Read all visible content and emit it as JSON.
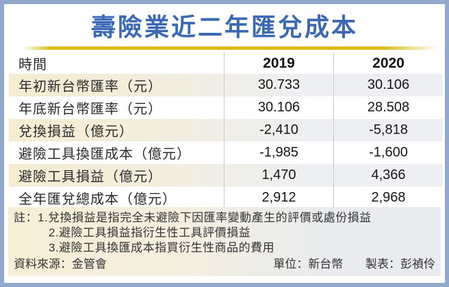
{
  "title": "壽險業近二年匯兌成本",
  "table": {
    "header": [
      "時間",
      "2019",
      "2020"
    ],
    "rows": [
      {
        "label": "年初新台幣匯率（元）",
        "values": [
          "30.733",
          "30.106"
        ]
      },
      {
        "label": "年底新台幣匯率（元）",
        "values": [
          "30.106",
          "28.508"
        ]
      },
      {
        "label": "兌換損益（億元）",
        "values": [
          "-2,410",
          "-5,818"
        ]
      },
      {
        "label": "避險工具換匯成本（億元）",
        "values": [
          "-1,985",
          "-1,600"
        ]
      },
      {
        "label": "避險工具損益（億元）",
        "values": [
          "1,470",
          "4,366"
        ]
      },
      {
        "label": "全年匯兌總成本（億元）",
        "values": [
          "2,912",
          "2,968"
        ]
      }
    ]
  },
  "notes": [
    "註：1.兌換損益是指完全未避險下因匯率變動產生的評價或處份損益",
    "2.避險工具損益指衍生性工具評價損益",
    "3.避險工具換匯成本指買衍生性商品的費用"
  ],
  "footer": {
    "source": "資料來源：金管會",
    "unit": "單位：新台幣",
    "author": "製表：彭禎伶"
  },
  "colors": {
    "frame_border": "#93a9cb",
    "title_blue": "#3a68b4",
    "gold_line": "#d9bc1a",
    "row_cream": "#f5ecd2",
    "row_gray": "#edeff3",
    "divider_gray": "#c9c9c9"
  },
  "chart_data": {
    "type": "table",
    "title": "壽險業近二年匯兌成本",
    "categories": [
      "2019",
      "2020"
    ],
    "series": [
      {
        "name": "年初新台幣匯率（元）",
        "values": [
          30.733,
          30.106
        ]
      },
      {
        "name": "年底新台幣匯率（元）",
        "values": [
          30.106,
          28.508
        ]
      },
      {
        "name": "兌換損益（億元）",
        "values": [
          -2410,
          -5818
        ]
      },
      {
        "name": "避險工具換匯成本（億元）",
        "values": [
          -1985,
          -1600
        ]
      },
      {
        "name": "避險工具損益（億元）",
        "values": [
          1470,
          4366
        ]
      },
      {
        "name": "全年匯兌總成本（億元）",
        "values": [
          2912,
          2968
        ]
      }
    ],
    "unit": "新台幣",
    "source": "金管會"
  }
}
